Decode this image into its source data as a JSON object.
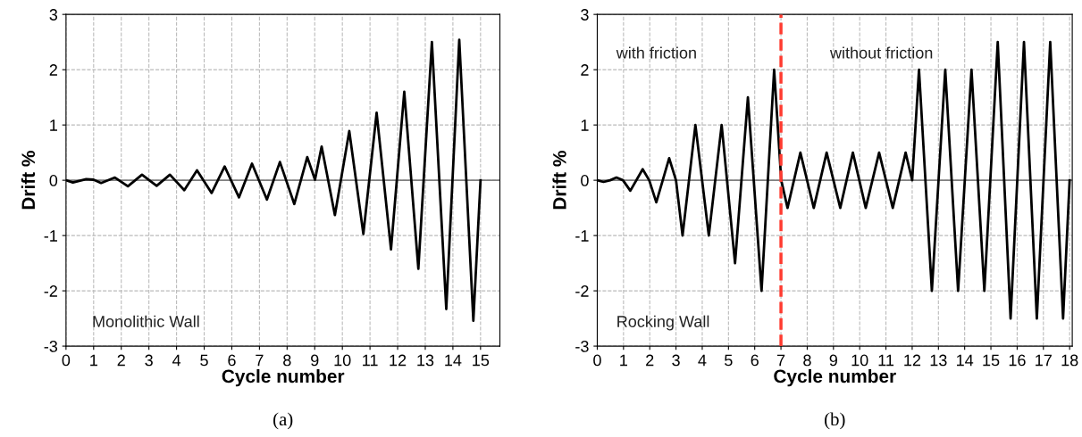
{
  "chart_data": [
    {
      "type": "line",
      "xlabel": "Cycle number",
      "ylabel": "Drift %",
      "annotations": [
        "Monolithic Wall",
        "(a)"
      ],
      "xlim": [
        0,
        15.7
      ],
      "xticks": [
        0,
        1,
        2,
        3,
        4,
        5,
        6,
        7,
        8,
        9,
        10,
        11,
        12,
        13,
        14,
        15
      ],
      "ylim": [
        -3,
        3
      ],
      "yticks": [
        -3,
        -2,
        -1,
        0,
        1,
        2,
        3
      ],
      "grid": true,
      "legend": false,
      "marker": "none",
      "line_style": "solid",
      "ref_lines": [
        {
          "axis": "y",
          "value": 0,
          "color": "#808080",
          "line_style": "solid"
        }
      ],
      "series": [
        {
          "color": "#000000",
          "x": [
            0,
            0.25,
            0.73,
            1,
            1.27,
            1.77,
            2.24,
            2.75,
            3.28,
            3.76,
            4.28,
            4.74,
            5.27,
            5.74,
            6.26,
            6.73,
            7.27,
            7.74,
            8.26,
            8.73,
            9.01,
            9.25,
            9.73,
            10.25,
            10.76,
            11.24,
            11.76,
            12.24,
            12.75,
            13.24,
            13.76,
            14.23,
            14.74,
            15
          ],
          "values": [
            0,
            -0.04,
            0.02,
            0.01,
            -0.05,
            0.05,
            -0.11,
            0.1,
            -0.1,
            0.1,
            -0.18,
            0.18,
            -0.23,
            0.25,
            -0.31,
            0.3,
            -0.35,
            0.33,
            -0.43,
            0.42,
            0.01,
            0.61,
            -0.63,
            0.89,
            -0.97,
            1.22,
            -1.25,
            1.6,
            -1.6,
            2.5,
            -2.33,
            2.54,
            -2.54,
            0
          ]
        }
      ]
    },
    {
      "type": "line",
      "xlabel": "Cycle number",
      "ylabel": "Drift %",
      "annotations": [
        "with friction",
        "without friction",
        "Rocking Wall",
        "(b)"
      ],
      "xlim": [
        0,
        18.1
      ],
      "xticks": [
        0,
        1,
        2,
        3,
        4,
        5,
        6,
        7,
        8,
        9,
        10,
        11,
        12,
        13,
        14,
        15,
        16,
        17,
        18
      ],
      "ylim": [
        -3,
        3
      ],
      "yticks": [
        -3,
        -2,
        -1,
        0,
        1,
        2,
        3
      ],
      "grid": true,
      "legend": false,
      "marker": "none",
      "line_style": "solid",
      "ref_lines": [
        {
          "axis": "y",
          "value": 0,
          "color": "#808080",
          "line_style": "solid"
        },
        {
          "axis": "x",
          "value": 7,
          "color": "#ff3b30",
          "line_style": "dashed"
        }
      ],
      "series": [
        {
          "color": "#000000",
          "x": [
            0,
            0.24,
            0.49,
            0.73,
            0.98,
            1.26,
            1.73,
            1.98,
            2.25,
            2.74,
            3,
            3.25,
            3.74,
            4.25,
            4.74,
            5.25,
            5.74,
            6.26,
            6.74,
            7.01,
            7.25,
            7.74,
            8.25,
            8.74,
            9.26,
            9.74,
            10.23,
            10.74,
            11.26,
            11.75,
            12,
            12.26,
            12.75,
            13.26,
            13.75,
            14.26,
            14.75,
            15.26,
            15.75,
            16.26,
            16.75,
            17.26,
            17.75,
            18
          ],
          "values": [
            0,
            -0.03,
            0,
            0.05,
            0,
            -0.19,
            0.2,
            0,
            -0.4,
            0.4,
            0,
            -1,
            1,
            -1,
            1,
            -1.5,
            1.5,
            -2,
            2,
            0,
            -0.5,
            0.5,
            -0.5,
            0.5,
            -0.5,
            0.5,
            -0.5,
            0.5,
            -0.5,
            0.5,
            0,
            2,
            -2,
            2,
            -2,
            2,
            -2,
            2.5,
            -2.5,
            2.5,
            -2.5,
            2.5,
            -2.5,
            0
          ]
        }
      ]
    }
  ]
}
